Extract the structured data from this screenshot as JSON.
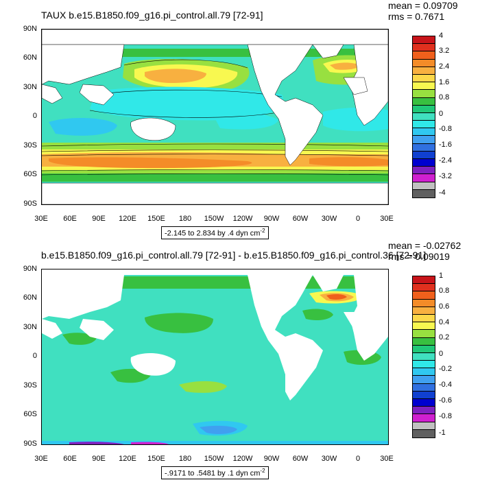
{
  "panels": [
    {
      "title": "TAUX b.e15.B1850.f09_g16.pi_control.all.79 [72-91]",
      "mean": "mean = 0.09709",
      "rms": "rms = 0.7671",
      "range_text": "-2.145 to 2.834 by .4 dyn cm",
      "range_exp": "-2",
      "lat_labels": [
        "90N",
        "60N",
        "30N",
        "0",
        "30S",
        "60S",
        "90S"
      ],
      "lon_labels": [
        "30E",
        "60E",
        "90E",
        "120E",
        "150E",
        "180",
        "150W",
        "120W",
        "90W",
        "60W",
        "30W",
        "0",
        "30E"
      ],
      "colorbar_labels": [
        "4",
        "3.2",
        "2.4",
        "1.6",
        "0.8",
        "0",
        "-0.8",
        "-1.6",
        "-2.4",
        "-3.2",
        "-4"
      ],
      "colorbar_colors": [
        "#c8141a",
        "#e0301e",
        "#f0601c",
        "#f48c28",
        "#f8b040",
        "#fcd84a",
        "#f8f850",
        "#98e040",
        "#38c040",
        "#20c878",
        "#40e0c0",
        "#30e8e8",
        "#30c8f0",
        "#40a0f0",
        "#3070e0",
        "#1040d0",
        "#0000d0",
        "#8020c0",
        "#d020d0",
        "#c0c0c0",
        "#606060"
      ]
    },
    {
      "title": "b.e15.B1850.f09_g16.pi_control.all.79 [72-91] - b.e15.B1850.f09_g16.pi_control.36 [72-91]",
      "mean": "mean = -0.02762",
      "rms": "rms = 0.09019",
      "range_text": "-.9171 to .5481 by .1 dyn cm",
      "range_exp": "-2",
      "lat_labels": [
        "90N",
        "60N",
        "30N",
        "0",
        "30S",
        "60S",
        "90S"
      ],
      "lon_labels": [
        "30E",
        "60E",
        "90E",
        "120E",
        "150E",
        "180",
        "150W",
        "120W",
        "90W",
        "60W",
        "30W",
        "0",
        "30E"
      ],
      "colorbar_labels": [
        "1",
        "0.8",
        "0.6",
        "0.4",
        "0.2",
        "0",
        "-0.2",
        "-0.4",
        "-0.6",
        "-0.8",
        "-1"
      ],
      "colorbar_colors": [
        "#c8141a",
        "#e0301e",
        "#f0601c",
        "#f48c28",
        "#f8b040",
        "#fcd84a",
        "#f8f850",
        "#98e040",
        "#38c040",
        "#20c878",
        "#40e0c0",
        "#30e8e8",
        "#30c8f0",
        "#40a0f0",
        "#3070e0",
        "#1040d0",
        "#0000d0",
        "#8020c0",
        "#d020d0",
        "#c0c0c0",
        "#606060"
      ]
    }
  ]
}
